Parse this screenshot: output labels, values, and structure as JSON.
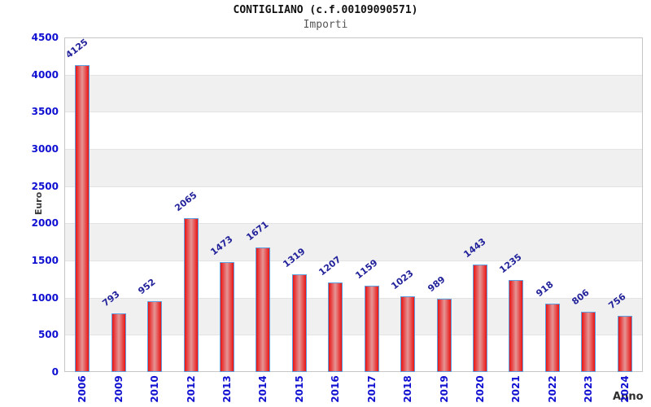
{
  "header": {
    "title": "CONTIGLIANO (c.f.00109090571)",
    "subtitle": "Importi"
  },
  "chart_data": {
    "type": "bar",
    "title": "CONTIGLIANO (c.f.00109090571)",
    "subtitle": "Importi",
    "xlabel": "Anno",
    "ylabel": "Euro",
    "categories": [
      "2006",
      "2009",
      "2010",
      "2012",
      "2013",
      "2014",
      "2015",
      "2016",
      "2017",
      "2018",
      "2019",
      "2020",
      "2021",
      "2022",
      "2023",
      "2024"
    ],
    "values": [
      4125,
      793,
      952,
      2065,
      1473,
      1671,
      1319,
      1207,
      1159,
      1023,
      989,
      1443,
      1235,
      918,
      806,
      756
    ],
    "ylim": [
      0,
      4500
    ],
    "ytick_step": 500,
    "ytick_labels": [
      "0",
      "500",
      "1000",
      "1500",
      "2000",
      "2500",
      "3000",
      "3500",
      "4000",
      "4500"
    ],
    "grid": "alternating-horizontal-bands",
    "legend": "none",
    "colors": {
      "bar_edge_red": "#e91414",
      "bar_center_pink": "#e59595",
      "bar_border": "#5e9fe0",
      "tick_label_blue": "#0f0fd2",
      "value_label_navy": "#22229b",
      "band_gray": "#f0f0f0",
      "band_white": "#ffffff",
      "gridline": "#e3e3e3",
      "plot_border": "#c6c6c6"
    }
  }
}
